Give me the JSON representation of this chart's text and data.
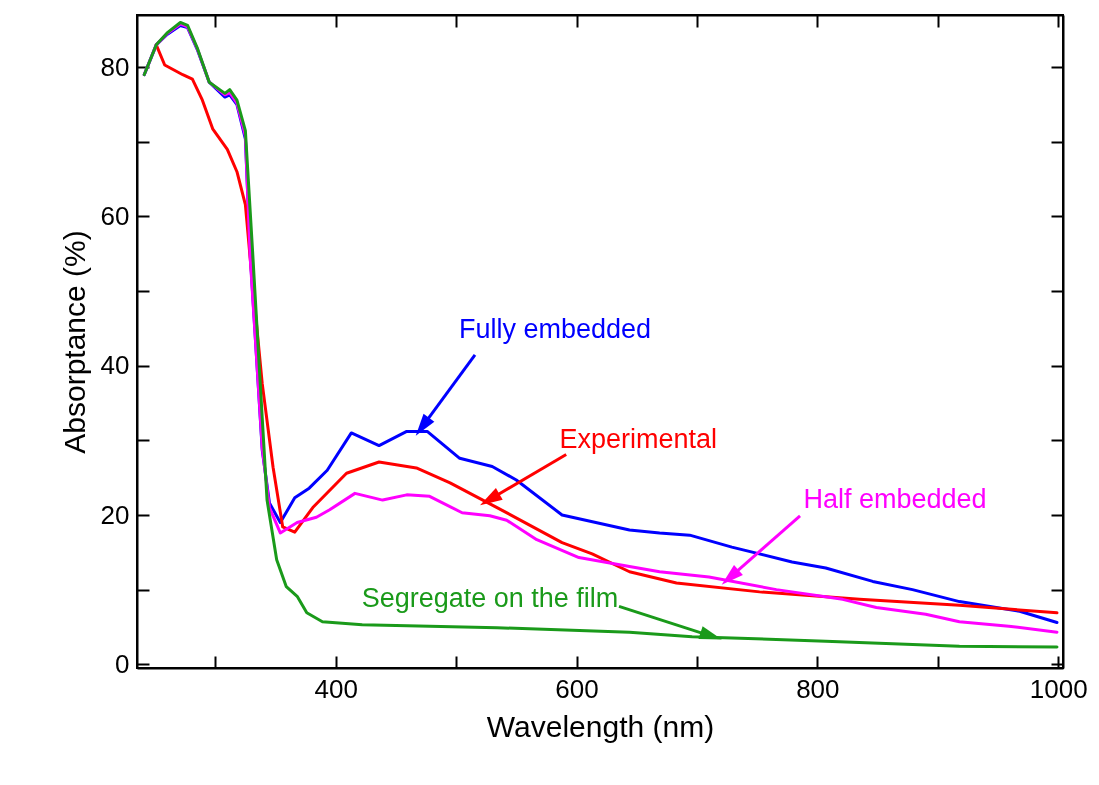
{
  "chart_data": {
    "type": "line",
    "xlabel": "Wavelength (nm)",
    "ylabel": "Absorptance (%)",
    "xlim": [
      235,
      1004
    ],
    "ylim": [
      -0.5,
      87
    ],
    "xticks": [
      {
        "value": 300,
        "label": null
      },
      400,
      {
        "value": 500,
        "label": null
      },
      600,
      {
        "value": 700,
        "label": null
      },
      800,
      {
        "value": 900,
        "label": null
      },
      1000
    ],
    "yticks": [
      0,
      {
        "value": 10,
        "label": null
      },
      20,
      {
        "value": 30,
        "label": null
      },
      40,
      {
        "value": 50,
        "label": null
      },
      60,
      {
        "value": 70,
        "label": null
      },
      80
    ],
    "grid": false,
    "line_style": "solid",
    "marker": "none",
    "series": [
      {
        "color": "#0000ff",
        "x": [
          241,
          251,
          260,
          271,
          277,
          285,
          295,
          308,
          312,
          318,
          325,
          329,
          339,
          345,
          354,
          366,
          378,
          393,
          413,
          436,
          459,
          476,
          503,
          530,
          550,
          588,
          644,
          669,
          694,
          729,
          779,
          807,
          846,
          879,
          918,
          968,
          999
        ],
        "values": [
          79,
          83,
          84.4,
          85.6,
          85.3,
          82.4,
          78,
          76,
          76.3,
          75,
          70.4,
          55,
          28.7,
          21.6,
          19,
          22.3,
          23.6,
          26,
          31,
          29.3,
          31.2,
          31.2,
          27.6,
          26.5,
          24.7,
          20,
          18,
          17.6,
          17.3,
          15.7,
          13.7,
          12.9,
          11.1,
          10,
          8.4,
          7.1,
          5.6
        ]
      },
      {
        "color": "#ff0000",
        "x": [
          251,
          258,
          273,
          281,
          289,
          298,
          310,
          318,
          325,
          329,
          339,
          348,
          356,
          366,
          381,
          409,
          436,
          467,
          495,
          534,
          588,
          613,
          644,
          683,
          752,
          835,
          918,
          999
        ],
        "values": [
          83,
          80.3,
          79,
          78.4,
          75.7,
          71.7,
          69,
          66,
          61.6,
          54.4,
          37.6,
          26.4,
          18.4,
          17.7,
          21,
          25.6,
          27.1,
          26.3,
          24.3,
          21,
          16.3,
          14.8,
          12.4,
          10.9,
          9.7,
          8.7,
          7.9,
          6.9
        ]
      },
      {
        "color": "#ff00ff",
        "x": [
          241,
          251,
          260,
          271,
          277,
          285,
          295,
          308,
          312,
          318,
          325,
          329,
          339,
          345,
          354,
          368,
          384,
          395,
          416,
          439,
          459,
          478,
          505,
          528,
          542,
          567,
          602,
          644,
          669,
          710,
          766,
          821,
          849,
          890,
          918,
          959,
          999
        ],
        "values": [
          79,
          83,
          84.5,
          85.8,
          85.4,
          82.5,
          78,
          76.3,
          76.6,
          75.2,
          70.8,
          54.5,
          29,
          21,
          17.6,
          19,
          19.7,
          20.7,
          22.9,
          22,
          22.7,
          22.5,
          20.3,
          19.9,
          19.3,
          16.7,
          14.3,
          13.1,
          12.4,
          11.7,
          10,
          8.7,
          7.6,
          6.7,
          5.7,
          5.1,
          4.3
        ]
      },
      {
        "color": "#1a9a1a",
        "x": [
          241,
          251,
          260,
          271,
          277,
          285,
          295,
          308,
          312,
          318,
          325,
          331,
          339,
          343,
          351,
          359,
          368,
          376,
          389,
          422,
          534,
          644,
          696,
          807,
          918,
          999
        ],
        "values": [
          79,
          83,
          84.6,
          86,
          85.6,
          82.6,
          78,
          76.5,
          77,
          75.6,
          71.5,
          55.3,
          33,
          22,
          14,
          10.4,
          9.1,
          6.9,
          5.7,
          5.3,
          4.9,
          4.3,
          3.7,
          3.1,
          2.4,
          2.3
        ]
      }
    ],
    "annotations": [
      {
        "text": "Fully embedded",
        "x": 470,
        "y": 31.4
      },
      {
        "text": "Experimental",
        "x": 525,
        "y": 21.8
      },
      {
        "text": "Half embedded",
        "x": 725,
        "y": 11.3
      },
      {
        "text": "Segregate on the film",
        "x": 715,
        "y": 3.6
      }
    ]
  }
}
